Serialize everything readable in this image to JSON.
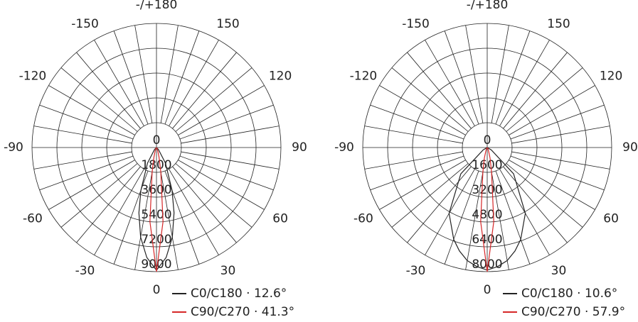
{
  "chart_data": [
    {
      "type": "polar",
      "x": [
        -90,
        -60,
        -45,
        -30,
        -20,
        -15,
        -10,
        -5,
        0,
        5,
        10,
        15,
        20,
        30,
        45,
        60,
        90
      ],
      "series": [
        {
          "name": "C0/C180 · 12.6°",
          "color": "#222222",
          "values": [
            0,
            0,
            200,
            1300,
            3300,
            4900,
            6600,
            8000,
            8900,
            8000,
            6600,
            4900,
            3300,
            1300,
            200,
            0,
            0
          ]
        },
        {
          "name": "C90/C270 · 41.3°",
          "color": "#d62728",
          "values": [
            0,
            0,
            0,
            100,
            300,
            700,
            1800,
            5400,
            9000,
            5400,
            1800,
            700,
            300,
            100,
            0,
            0,
            0
          ]
        }
      ],
      "rlim": [
        0,
        9000
      ],
      "rticks": [
        0,
        1800,
        3600,
        5400,
        7200,
        9000
      ],
      "angle_ticks": [
        {
          "value": 180,
          "label": "-/+180"
        },
        -150,
        150,
        -120,
        120,
        -90,
        90,
        -60,
        60,
        -30,
        30,
        0
      ]
    },
    {
      "type": "polar",
      "x": [
        -90,
        -60,
        -45,
        -30,
        -20,
        -15,
        -10,
        -5,
        0,
        5,
        10,
        15,
        20,
        30,
        45,
        60,
        90
      ],
      "series": [
        {
          "name": "C0/C180 · 10.6°",
          "color": "#222222",
          "values": [
            0,
            300,
            2400,
            4900,
            6300,
            6900,
            7400,
            7700,
            7900,
            7700,
            7400,
            6900,
            6300,
            4900,
            2400,
            300,
            0
          ]
        },
        {
          "name": "C90/C270 · 57.9°",
          "color": "#d62728",
          "values": [
            0,
            0,
            0,
            100,
            300,
            700,
            1600,
            4800,
            8000,
            4800,
            1600,
            700,
            300,
            100,
            0,
            0,
            0
          ]
        }
      ],
      "rlim": [
        0,
        8000
      ],
      "rticks": [
        0,
        1600,
        3200,
        4800,
        6400,
        8000
      ],
      "angle_ticks": [
        {
          "value": 180,
          "label": "-/+180"
        },
        -150,
        150,
        -120,
        120,
        -90,
        90,
        -60,
        60,
        -30,
        30,
        0
      ]
    }
  ]
}
